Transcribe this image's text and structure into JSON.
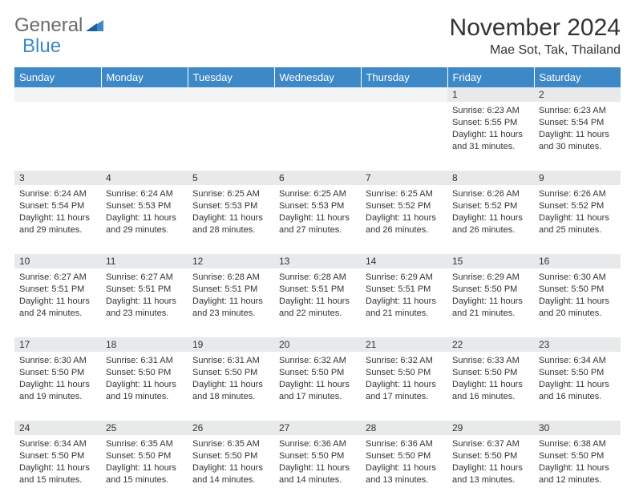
{
  "brand": {
    "part1": "General",
    "part2": "Blue"
  },
  "title": "November 2024",
  "location": "Mae Sot, Tak, Thailand",
  "colors": {
    "header_bg": "#3d88c7",
    "header_text": "#ffffff",
    "daynum_bg": "#e7e9eb",
    "body_text": "#333333",
    "logo_gray": "#6b6b6b",
    "logo_blue": "#3d88c7"
  },
  "day_headers": [
    "Sunday",
    "Monday",
    "Tuesday",
    "Wednesday",
    "Thursday",
    "Friday",
    "Saturday"
  ],
  "weeks": [
    [
      null,
      null,
      null,
      null,
      null,
      {
        "n": "1",
        "sunrise": "Sunrise: 6:23 AM",
        "sunset": "Sunset: 5:55 PM",
        "daylight": "Daylight: 11 hours and 31 minutes."
      },
      {
        "n": "2",
        "sunrise": "Sunrise: 6:23 AM",
        "sunset": "Sunset: 5:54 PM",
        "daylight": "Daylight: 11 hours and 30 minutes."
      }
    ],
    [
      {
        "n": "3",
        "sunrise": "Sunrise: 6:24 AM",
        "sunset": "Sunset: 5:54 PM",
        "daylight": "Daylight: 11 hours and 29 minutes."
      },
      {
        "n": "4",
        "sunrise": "Sunrise: 6:24 AM",
        "sunset": "Sunset: 5:53 PM",
        "daylight": "Daylight: 11 hours and 29 minutes."
      },
      {
        "n": "5",
        "sunrise": "Sunrise: 6:25 AM",
        "sunset": "Sunset: 5:53 PM",
        "daylight": "Daylight: 11 hours and 28 minutes."
      },
      {
        "n": "6",
        "sunrise": "Sunrise: 6:25 AM",
        "sunset": "Sunset: 5:53 PM",
        "daylight": "Daylight: 11 hours and 27 minutes."
      },
      {
        "n": "7",
        "sunrise": "Sunrise: 6:25 AM",
        "sunset": "Sunset: 5:52 PM",
        "daylight": "Daylight: 11 hours and 26 minutes."
      },
      {
        "n": "8",
        "sunrise": "Sunrise: 6:26 AM",
        "sunset": "Sunset: 5:52 PM",
        "daylight": "Daylight: 11 hours and 26 minutes."
      },
      {
        "n": "9",
        "sunrise": "Sunrise: 6:26 AM",
        "sunset": "Sunset: 5:52 PM",
        "daylight": "Daylight: 11 hours and 25 minutes."
      }
    ],
    [
      {
        "n": "10",
        "sunrise": "Sunrise: 6:27 AM",
        "sunset": "Sunset: 5:51 PM",
        "daylight": "Daylight: 11 hours and 24 minutes."
      },
      {
        "n": "11",
        "sunrise": "Sunrise: 6:27 AM",
        "sunset": "Sunset: 5:51 PM",
        "daylight": "Daylight: 11 hours and 23 minutes."
      },
      {
        "n": "12",
        "sunrise": "Sunrise: 6:28 AM",
        "sunset": "Sunset: 5:51 PM",
        "daylight": "Daylight: 11 hours and 23 minutes."
      },
      {
        "n": "13",
        "sunrise": "Sunrise: 6:28 AM",
        "sunset": "Sunset: 5:51 PM",
        "daylight": "Daylight: 11 hours and 22 minutes."
      },
      {
        "n": "14",
        "sunrise": "Sunrise: 6:29 AM",
        "sunset": "Sunset: 5:51 PM",
        "daylight": "Daylight: 11 hours and 21 minutes."
      },
      {
        "n": "15",
        "sunrise": "Sunrise: 6:29 AM",
        "sunset": "Sunset: 5:50 PM",
        "daylight": "Daylight: 11 hours and 21 minutes."
      },
      {
        "n": "16",
        "sunrise": "Sunrise: 6:30 AM",
        "sunset": "Sunset: 5:50 PM",
        "daylight": "Daylight: 11 hours and 20 minutes."
      }
    ],
    [
      {
        "n": "17",
        "sunrise": "Sunrise: 6:30 AM",
        "sunset": "Sunset: 5:50 PM",
        "daylight": "Daylight: 11 hours and 19 minutes."
      },
      {
        "n": "18",
        "sunrise": "Sunrise: 6:31 AM",
        "sunset": "Sunset: 5:50 PM",
        "daylight": "Daylight: 11 hours and 19 minutes."
      },
      {
        "n": "19",
        "sunrise": "Sunrise: 6:31 AM",
        "sunset": "Sunset: 5:50 PM",
        "daylight": "Daylight: 11 hours and 18 minutes."
      },
      {
        "n": "20",
        "sunrise": "Sunrise: 6:32 AM",
        "sunset": "Sunset: 5:50 PM",
        "daylight": "Daylight: 11 hours and 17 minutes."
      },
      {
        "n": "21",
        "sunrise": "Sunrise: 6:32 AM",
        "sunset": "Sunset: 5:50 PM",
        "daylight": "Daylight: 11 hours and 17 minutes."
      },
      {
        "n": "22",
        "sunrise": "Sunrise: 6:33 AM",
        "sunset": "Sunset: 5:50 PM",
        "daylight": "Daylight: 11 hours and 16 minutes."
      },
      {
        "n": "23",
        "sunrise": "Sunrise: 6:34 AM",
        "sunset": "Sunset: 5:50 PM",
        "daylight": "Daylight: 11 hours and 16 minutes."
      }
    ],
    [
      {
        "n": "24",
        "sunrise": "Sunrise: 6:34 AM",
        "sunset": "Sunset: 5:50 PM",
        "daylight": "Daylight: 11 hours and 15 minutes."
      },
      {
        "n": "25",
        "sunrise": "Sunrise: 6:35 AM",
        "sunset": "Sunset: 5:50 PM",
        "daylight": "Daylight: 11 hours and 15 minutes."
      },
      {
        "n": "26",
        "sunrise": "Sunrise: 6:35 AM",
        "sunset": "Sunset: 5:50 PM",
        "daylight": "Daylight: 11 hours and 14 minutes."
      },
      {
        "n": "27",
        "sunrise": "Sunrise: 6:36 AM",
        "sunset": "Sunset: 5:50 PM",
        "daylight": "Daylight: 11 hours and 14 minutes."
      },
      {
        "n": "28",
        "sunrise": "Sunrise: 6:36 AM",
        "sunset": "Sunset: 5:50 PM",
        "daylight": "Daylight: 11 hours and 13 minutes."
      },
      {
        "n": "29",
        "sunrise": "Sunrise: 6:37 AM",
        "sunset": "Sunset: 5:50 PM",
        "daylight": "Daylight: 11 hours and 13 minutes."
      },
      {
        "n": "30",
        "sunrise": "Sunrise: 6:38 AM",
        "sunset": "Sunset: 5:50 PM",
        "daylight": "Daylight: 11 hours and 12 minutes."
      }
    ]
  ]
}
